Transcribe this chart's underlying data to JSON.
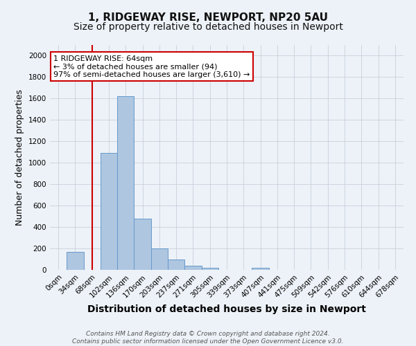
{
  "title": "1, RIDGEWAY RISE, NEWPORT, NP20 5AU",
  "subtitle": "Size of property relative to detached houses in Newport",
  "xlabel": "Distribution of detached houses by size in Newport",
  "ylabel": "Number of detached properties",
  "bar_categories": [
    "0sqm",
    "34sqm",
    "68sqm",
    "102sqm",
    "136sqm",
    "170sqm",
    "203sqm",
    "237sqm",
    "271sqm",
    "305sqm",
    "339sqm",
    "373sqm",
    "407sqm",
    "441sqm",
    "475sqm",
    "509sqm",
    "542sqm",
    "576sqm",
    "610sqm",
    "644sqm",
    "678sqm"
  ],
  "bar_values": [
    0,
    170,
    0,
    1090,
    1620,
    480,
    200,
    100,
    42,
    20,
    0,
    0,
    20,
    0,
    0,
    0,
    0,
    0,
    0,
    0,
    0
  ],
  "bar_color": "#aec6e0",
  "bar_edgecolor": "#6699cc",
  "vline_x_index": 2,
  "vline_color": "#cc0000",
  "ylim": [
    0,
    2100
  ],
  "yticks": [
    0,
    200,
    400,
    600,
    800,
    1000,
    1200,
    1400,
    1600,
    1800,
    2000
  ],
  "annotation_line1": "1 RIDGEWAY RISE: 64sqm",
  "annotation_line2": "← 3% of detached houses are smaller (94)",
  "annotation_line3": "97% of semi-detached houses are larger (3,610) →",
  "annotation_box_facecolor": "#ffffff",
  "annotation_box_edgecolor": "#cc0000",
  "footer_line1": "Contains HM Land Registry data © Crown copyright and database right 2024.",
  "footer_line2": "Contains public sector information licensed under the Open Government Licence v3.0.",
  "bg_color": "#edf2f8",
  "grid_color": "#c8d0dc",
  "title_fontsize": 11,
  "subtitle_fontsize": 10,
  "xlabel_fontsize": 10,
  "ylabel_fontsize": 9,
  "tick_fontsize": 7.5,
  "annotation_fontsize": 8,
  "footer_fontsize": 6.5
}
